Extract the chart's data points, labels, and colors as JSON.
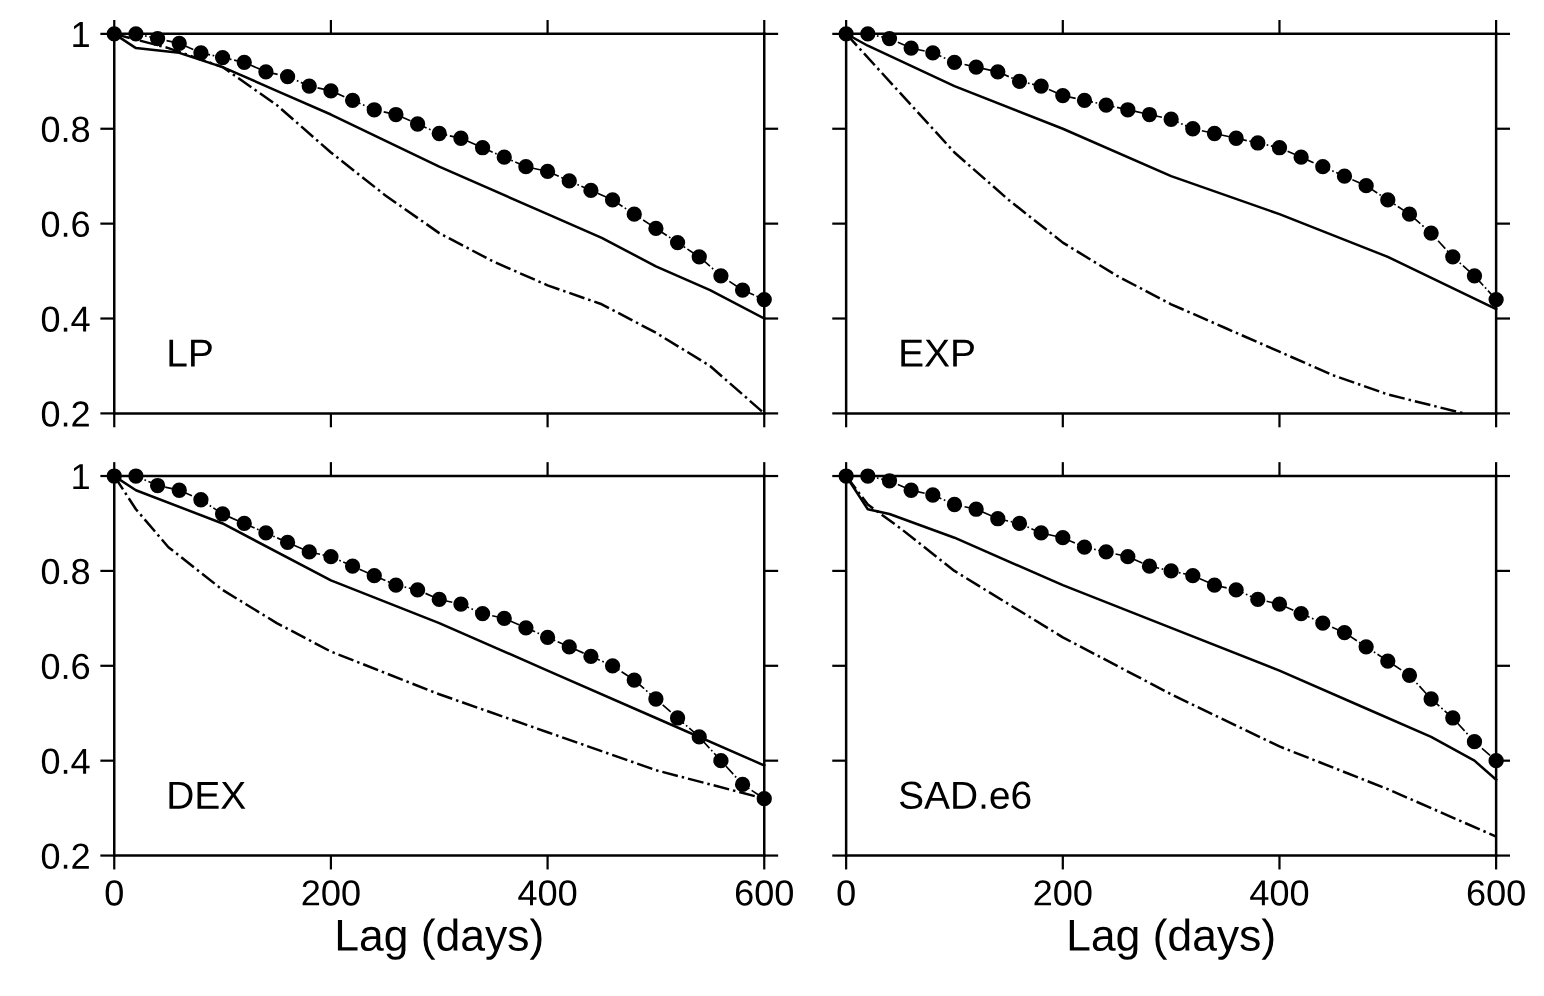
{
  "chart_data": [
    {
      "type": "line",
      "annotations": [
        "LP"
      ],
      "xlim": [
        0,
        600
      ],
      "ylim": [
        0.2,
        1
      ],
      "xticks": [
        0,
        200,
        400,
        600
      ],
      "yticks": [
        0.2,
        0.4,
        0.6,
        0.8,
        1
      ],
      "tick_labels": "y",
      "grid": false,
      "series": [
        {
          "color": "#000000",
          "line_style": "solid",
          "marker": "none",
          "x": [
            0,
            20,
            60,
            100,
            150,
            200,
            300,
            400,
            450,
            500,
            550,
            600
          ],
          "values": [
            1.0,
            0.97,
            0.96,
            0.93,
            0.88,
            0.83,
            0.72,
            0.62,
            0.57,
            0.51,
            0.46,
            0.4
          ]
        },
        {
          "color": "#000000",
          "line_style": "dashdot",
          "marker": "none",
          "x": [
            0,
            50,
            100,
            150,
            200,
            250,
            300,
            350,
            400,
            450,
            500,
            550,
            600
          ],
          "values": [
            1.0,
            0.97,
            0.93,
            0.85,
            0.75,
            0.66,
            0.58,
            0.52,
            0.47,
            0.43,
            0.37,
            0.3,
            0.2
          ]
        },
        {
          "color": "#000000",
          "line_style": "dashdot",
          "marker": "circle",
          "x": [
            0,
            20,
            40,
            60,
            80,
            100,
            120,
            140,
            160,
            180,
            200,
            220,
            240,
            260,
            280,
            300,
            320,
            340,
            360,
            380,
            400,
            420,
            440,
            460,
            480,
            500,
            520,
            540,
            560,
            580,
            600
          ],
          "values": [
            1.0,
            1.0,
            0.99,
            0.98,
            0.96,
            0.95,
            0.94,
            0.92,
            0.91,
            0.89,
            0.88,
            0.86,
            0.84,
            0.83,
            0.81,
            0.79,
            0.78,
            0.76,
            0.74,
            0.72,
            0.71,
            0.69,
            0.67,
            0.65,
            0.62,
            0.59,
            0.56,
            0.53,
            0.49,
            0.46,
            0.44
          ]
        }
      ]
    },
    {
      "type": "line",
      "annotations": [
        "EXP"
      ],
      "xlim": [
        0,
        600
      ],
      "ylim": [
        0.2,
        1
      ],
      "xticks": [
        0,
        200,
        400,
        600
      ],
      "yticks": [
        0.2,
        0.4,
        0.6,
        0.8,
        1
      ],
      "tick_labels": false,
      "grid": false,
      "series": [
        {
          "color": "#000000",
          "line_style": "solid",
          "marker": "none",
          "x": [
            0,
            20,
            100,
            200,
            300,
            400,
            500,
            600
          ],
          "values": [
            1.0,
            0.975,
            0.89,
            0.8,
            0.7,
            0.62,
            0.53,
            0.42
          ]
        },
        {
          "color": "#000000",
          "line_style": "dashdot",
          "marker": "none",
          "x": [
            0,
            50,
            100,
            150,
            200,
            250,
            300,
            350,
            400,
            450,
            500,
            570
          ],
          "values": [
            1.0,
            0.875,
            0.75,
            0.65,
            0.56,
            0.49,
            0.43,
            0.38,
            0.33,
            0.28,
            0.24,
            0.2
          ]
        },
        {
          "color": "#000000",
          "line_style": "dashdot",
          "marker": "circle",
          "x": [
            0,
            20,
            40,
            60,
            80,
            100,
            120,
            140,
            160,
            180,
            200,
            220,
            240,
            260,
            280,
            300,
            320,
            340,
            360,
            380,
            400,
            420,
            440,
            460,
            480,
            500,
            520,
            540,
            560,
            580,
            600
          ],
          "values": [
            1.0,
            1.0,
            0.99,
            0.97,
            0.96,
            0.94,
            0.93,
            0.92,
            0.9,
            0.89,
            0.87,
            0.86,
            0.85,
            0.84,
            0.83,
            0.82,
            0.8,
            0.79,
            0.78,
            0.77,
            0.76,
            0.74,
            0.72,
            0.7,
            0.68,
            0.65,
            0.62,
            0.58,
            0.53,
            0.49,
            0.44
          ]
        }
      ]
    },
    {
      "type": "line",
      "annotations": [
        "DEX"
      ],
      "xlabel": "Lag (days)",
      "xlim": [
        0,
        600
      ],
      "ylim": [
        0.2,
        1
      ],
      "xticks": [
        0,
        200,
        400,
        600
      ],
      "yticks": [
        0.2,
        0.4,
        0.6,
        0.8,
        1
      ],
      "grid": false,
      "series": [
        {
          "color": "#000000",
          "line_style": "solid",
          "marker": "none",
          "x": [
            0,
            20,
            100,
            200,
            300,
            400,
            500,
            600
          ],
          "values": [
            1.0,
            0.97,
            0.9,
            0.78,
            0.69,
            0.59,
            0.49,
            0.39
          ]
        },
        {
          "color": "#000000",
          "line_style": "dashdot",
          "marker": "none",
          "x": [
            0,
            20,
            50,
            100,
            150,
            200,
            300,
            400,
            500,
            600
          ],
          "values": [
            1.0,
            0.93,
            0.85,
            0.76,
            0.69,
            0.63,
            0.54,
            0.46,
            0.38,
            0.32
          ]
        },
        {
          "color": "#000000",
          "line_style": "dashdot",
          "marker": "circle",
          "x": [
            0,
            20,
            40,
            60,
            80,
            100,
            120,
            140,
            160,
            180,
            200,
            220,
            240,
            260,
            280,
            300,
            320,
            340,
            360,
            380,
            400,
            420,
            440,
            460,
            480,
            500,
            520,
            540,
            560,
            580,
            600
          ],
          "values": [
            1.0,
            1.0,
            0.98,
            0.97,
            0.95,
            0.92,
            0.9,
            0.88,
            0.86,
            0.84,
            0.83,
            0.81,
            0.79,
            0.77,
            0.76,
            0.74,
            0.73,
            0.71,
            0.7,
            0.68,
            0.66,
            0.64,
            0.62,
            0.6,
            0.57,
            0.53,
            0.49,
            0.45,
            0.4,
            0.35,
            0.32
          ]
        }
      ]
    },
    {
      "type": "line",
      "annotations": [
        "SAD.e6"
      ],
      "xlabel": "Lag (days)",
      "xlim": [
        0,
        600
      ],
      "ylim": [
        0.2,
        1
      ],
      "xticks": [
        0,
        200,
        400,
        600
      ],
      "yticks": [
        0.2,
        0.4,
        0.6,
        0.8,
        1
      ],
      "tick_labels": "x",
      "grid": false,
      "series": [
        {
          "color": "#000000",
          "line_style": "solid",
          "marker": "none",
          "x": [
            0,
            20,
            40,
            100,
            200,
            300,
            400,
            480,
            540,
            580,
            600
          ],
          "values": [
            1.0,
            0.93,
            0.92,
            0.87,
            0.77,
            0.68,
            0.59,
            0.51,
            0.45,
            0.4,
            0.36
          ]
        },
        {
          "color": "#000000",
          "line_style": "dashdot",
          "marker": "none",
          "x": [
            0,
            20,
            50,
            100,
            200,
            300,
            400,
            500,
            600
          ],
          "values": [
            1.0,
            0.94,
            0.89,
            0.8,
            0.66,
            0.54,
            0.43,
            0.34,
            0.24
          ]
        },
        {
          "color": "#000000",
          "line_style": "dashdot",
          "marker": "circle",
          "x": [
            0,
            20,
            40,
            60,
            80,
            100,
            120,
            140,
            160,
            180,
            200,
            220,
            240,
            260,
            280,
            300,
            320,
            340,
            360,
            380,
            400,
            420,
            440,
            460,
            480,
            500,
            520,
            540,
            560,
            580,
            600
          ],
          "values": [
            1.0,
            1.0,
            0.99,
            0.97,
            0.96,
            0.94,
            0.93,
            0.91,
            0.9,
            0.88,
            0.87,
            0.85,
            0.84,
            0.83,
            0.81,
            0.8,
            0.79,
            0.77,
            0.76,
            0.74,
            0.73,
            0.71,
            0.69,
            0.67,
            0.64,
            0.61,
            0.58,
            0.53,
            0.49,
            0.44,
            0.4
          ]
        }
      ]
    }
  ]
}
